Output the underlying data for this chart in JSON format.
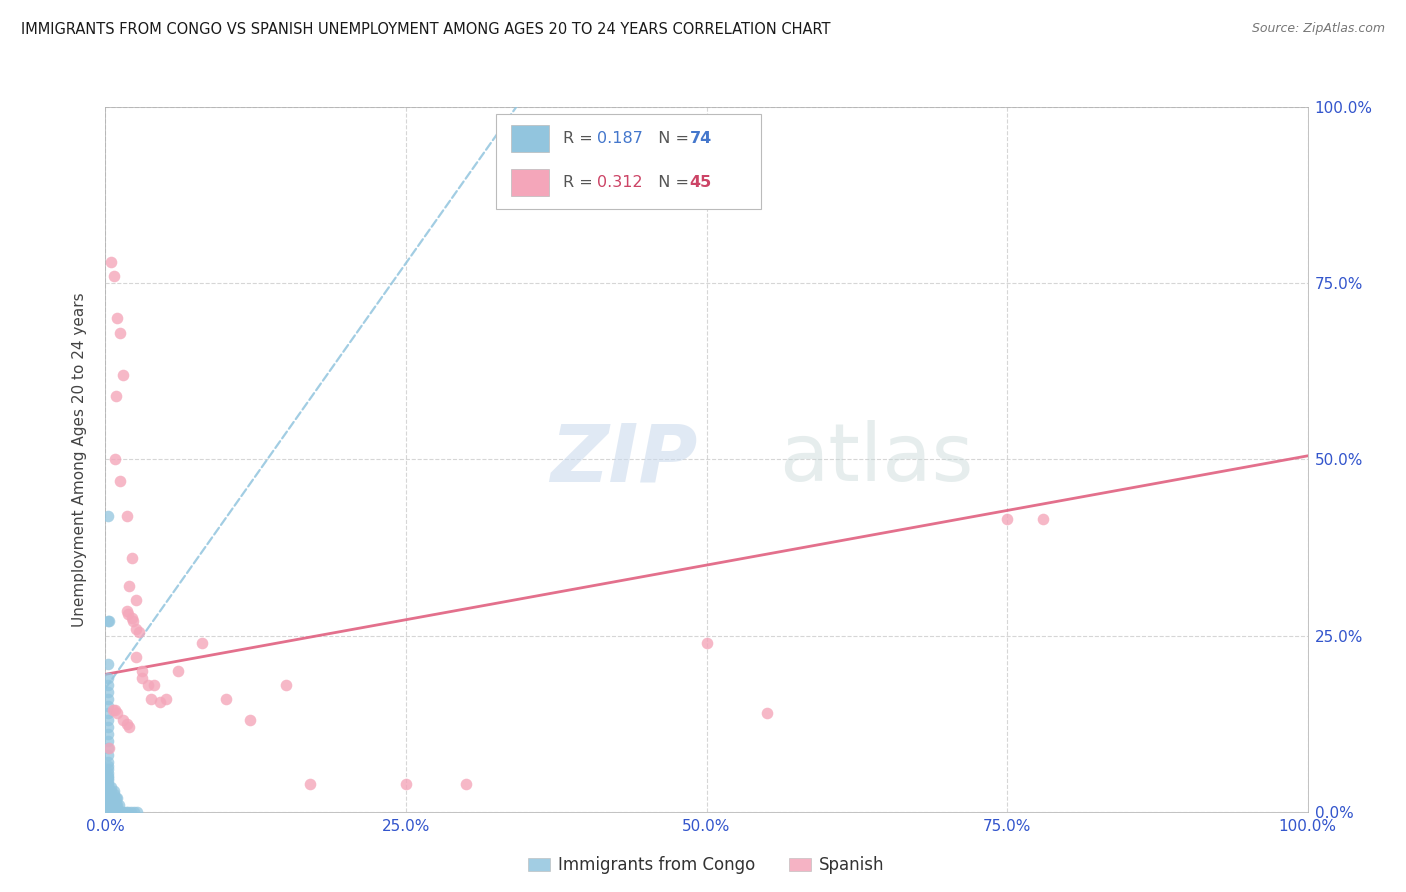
{
  "title": "IMMIGRANTS FROM CONGO VS SPANISH UNEMPLOYMENT AMONG AGES 20 TO 24 YEARS CORRELATION CHART",
  "source": "Source: ZipAtlas.com",
  "ylabel": "Unemployment Among Ages 20 to 24 years",
  "xlim": [
    0,
    1
  ],
  "ylim": [
    0,
    1
  ],
  "xticks": [
    0,
    0.25,
    0.5,
    0.75,
    1.0
  ],
  "yticks": [
    0,
    0.25,
    0.5,
    0.75,
    1.0
  ],
  "tick_labels": [
    "0.0%",
    "25.0%",
    "50.0%",
    "75.0%",
    "100.0%"
  ],
  "congo_color": "#92c5de",
  "spanish_color": "#f4a6ba",
  "congo_R": "0.187",
  "congo_N": "74",
  "spanish_R": "0.312",
  "spanish_N": "45",
  "legend_label_congo": "Immigrants from Congo",
  "legend_label_spanish": "Spanish",
  "watermark_zip": "ZIP",
  "watermark_atlas": "atlas",
  "title_color": "#1a1a1a",
  "axis_label_color": "#444444",
  "tick_color": "#3355cc",
  "grid_color": "#cccccc",
  "r_color_congo": "#4477cc",
  "r_color_spanish": "#cc4466",
  "congo_scatter_x": [
    0.002,
    0.002,
    0.003,
    0.002,
    0.002,
    0.002,
    0.002,
    0.002,
    0.002,
    0.002,
    0.002,
    0.002,
    0.002,
    0.002,
    0.002,
    0.002,
    0.002,
    0.002,
    0.002,
    0.002,
    0.002,
    0.002,
    0.002,
    0.002,
    0.002,
    0.002,
    0.002,
    0.002,
    0.002,
    0.002,
    0.002,
    0.002,
    0.002,
    0.002,
    0.002,
    0.002,
    0.002,
    0.002,
    0.002,
    0.002,
    0.002,
    0.002,
    0.003,
    0.004,
    0.004,
    0.005,
    0.005,
    0.005,
    0.005,
    0.005,
    0.006,
    0.006,
    0.007,
    0.007,
    0.007,
    0.007,
    0.007,
    0.008,
    0.009,
    0.009,
    0.009,
    0.01,
    0.01,
    0.01,
    0.011,
    0.012,
    0.013,
    0.014,
    0.015,
    0.017,
    0.019,
    0.021,
    0.024,
    0.026
  ],
  "congo_scatter_y": [
    0.42,
    0.27,
    0.27,
    0.21,
    0.19,
    0.18,
    0.17,
    0.16,
    0.15,
    0.14,
    0.13,
    0.12,
    0.11,
    0.1,
    0.09,
    0.08,
    0.07,
    0.065,
    0.06,
    0.055,
    0.05,
    0.048,
    0.045,
    0.04,
    0.038,
    0.035,
    0.03,
    0.028,
    0.025,
    0.022,
    0.02,
    0.018,
    0.016,
    0.014,
    0.012,
    0.01,
    0.008,
    0.006,
    0.004,
    0.002,
    0.001,
    0.0,
    0.0,
    0.005,
    0.01,
    0.015,
    0.02,
    0.025,
    0.03,
    0.035,
    0.0,
    0.005,
    0.01,
    0.015,
    0.02,
    0.025,
    0.03,
    0.0,
    0.01,
    0.02,
    0.0,
    0.01,
    0.02,
    0.0,
    0.01,
    0.0,
    0.0,
    0.0,
    0.0,
    0.0,
    0.0,
    0.0,
    0.0,
    0.0
  ],
  "spanish_scatter_x": [
    0.005,
    0.007,
    0.01,
    0.012,
    0.009,
    0.015,
    0.008,
    0.012,
    0.018,
    0.022,
    0.02,
    0.025,
    0.018,
    0.019,
    0.022,
    0.023,
    0.025,
    0.028,
    0.025,
    0.03,
    0.03,
    0.035,
    0.038,
    0.006,
    0.008,
    0.01,
    0.015,
    0.018,
    0.02,
    0.04,
    0.045,
    0.05,
    0.06,
    0.08,
    0.1,
    0.12,
    0.15,
    0.17,
    0.25,
    0.3,
    0.5,
    0.55,
    0.75,
    0.78,
    0.003
  ],
  "spanish_scatter_y": [
    0.78,
    0.76,
    0.7,
    0.68,
    0.59,
    0.62,
    0.5,
    0.47,
    0.42,
    0.36,
    0.32,
    0.3,
    0.285,
    0.28,
    0.275,
    0.27,
    0.26,
    0.255,
    0.22,
    0.2,
    0.19,
    0.18,
    0.16,
    0.145,
    0.145,
    0.14,
    0.13,
    0.125,
    0.12,
    0.18,
    0.155,
    0.16,
    0.2,
    0.24,
    0.16,
    0.13,
    0.18,
    0.04,
    0.04,
    0.04,
    0.24,
    0.14,
    0.415,
    0.415,
    0.09
  ],
  "congo_trend_x": [
    0.0,
    0.35
  ],
  "congo_trend_y": [
    0.175,
    1.02
  ],
  "spanish_trend_x": [
    0.0,
    1.0
  ],
  "spanish_trend_y": [
    0.195,
    0.505
  ],
  "border_color": "#aaaaaa"
}
